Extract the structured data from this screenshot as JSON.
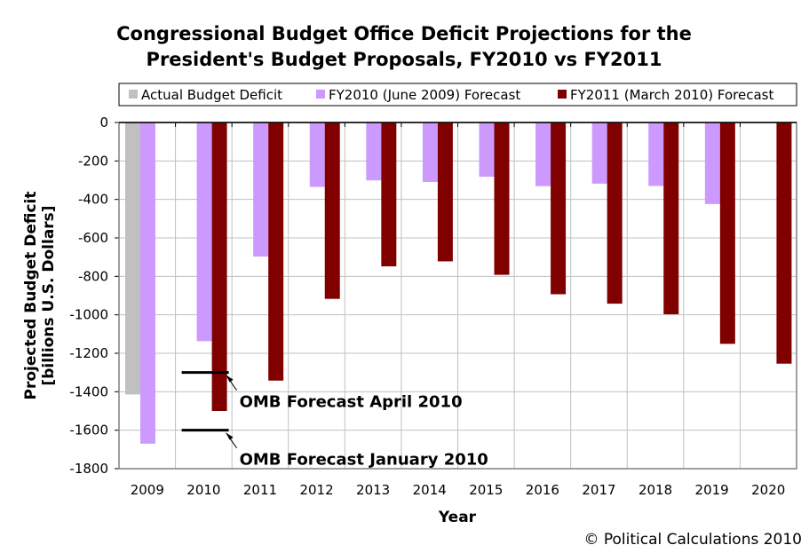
{
  "chart_data": {
    "type": "bar",
    "title_lines": [
      "Congressional Budget Office Deficit Projections for the",
      "President's Budget Proposals, FY2010 vs FY2011"
    ],
    "xlabel": "Year",
    "ylabel_lines": [
      "Projected Budget Deficit",
      "[billions U.S. Dollars]"
    ],
    "ylim": [
      -1800,
      0
    ],
    "yticks": [
      0,
      -200,
      -400,
      -600,
      -800,
      -1000,
      -1200,
      -1400,
      -1600,
      -1800
    ],
    "grid": true,
    "legend_position": "top",
    "categories": [
      "2009",
      "2010",
      "2011",
      "2012",
      "2013",
      "2014",
      "2015",
      "2016",
      "2017",
      "2018",
      "2019",
      "2020"
    ],
    "series": [
      {
        "name": "Actual Budget Deficit",
        "color": "#c0c0c0",
        "values": [
          -1414,
          null,
          null,
          null,
          null,
          null,
          null,
          null,
          null,
          null,
          null,
          null
        ]
      },
      {
        "name": "FY2010 (June 2009) Forecast",
        "color": "#cc99ff",
        "values": [
          -1670,
          -1137,
          -697,
          -335,
          -301,
          -309,
          -282,
          -331,
          -318,
          -330,
          -424,
          null
        ]
      },
      {
        "name": "FY2011 (March 2010) Forecast",
        "color": "#800000",
        "values": [
          null,
          -1500,
          -1342,
          -917,
          -748,
          -722,
          -792,
          -893,
          -942,
          -997,
          -1151,
          -1254
        ]
      }
    ],
    "annotations": [
      {
        "text": "OMB Forecast April 2010",
        "year": "2010",
        "value": -1300
      },
      {
        "text": "OMB Forecast January 2010",
        "year": "2010",
        "value": -1600
      }
    ]
  },
  "footer": {
    "copyright": "© Political Calculations 2010"
  }
}
